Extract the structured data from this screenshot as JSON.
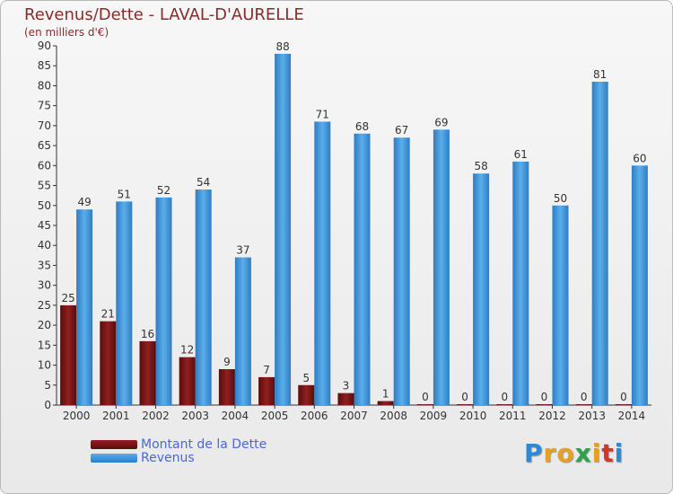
{
  "chart_data": {
    "type": "bar",
    "title": "Revenus/Dette - LAVAL-D'AURELLE",
    "subtitle": "(en milliers d'€)",
    "categories": [
      "2000",
      "2001",
      "2002",
      "2003",
      "2004",
      "2005",
      "2006",
      "2007",
      "2008",
      "2009",
      "2010",
      "2011",
      "2012",
      "2013",
      "2014"
    ],
    "series": [
      {
        "name": "Montant de la Dette",
        "color": "#7a1414",
        "values": [
          25,
          21,
          16,
          12,
          9,
          7,
          5,
          3,
          1,
          0,
          0,
          0,
          0,
          0,
          0
        ]
      },
      {
        "name": "Revenus",
        "color": "#3d8fd6",
        "values": [
          49,
          51,
          52,
          54,
          37,
          88,
          71,
          68,
          67,
          69,
          58,
          61,
          50,
          81,
          60
        ]
      }
    ],
    "ylim": [
      0,
      90
    ],
    "yticks": [
      0,
      5,
      10,
      15,
      20,
      25,
      30,
      35,
      40,
      45,
      50,
      55,
      60,
      65,
      70,
      75,
      80,
      85,
      90
    ],
    "grid": false,
    "legend": "bottom-left"
  },
  "logo": {
    "letters": [
      "P",
      "r",
      "o",
      "x",
      "i",
      "t",
      "i"
    ],
    "colors": [
      "#2a8ad6",
      "#e8a020",
      "#e8a020",
      "#2aa34a",
      "#e8a020",
      "#d9322a",
      "#2a8ad6"
    ]
  }
}
